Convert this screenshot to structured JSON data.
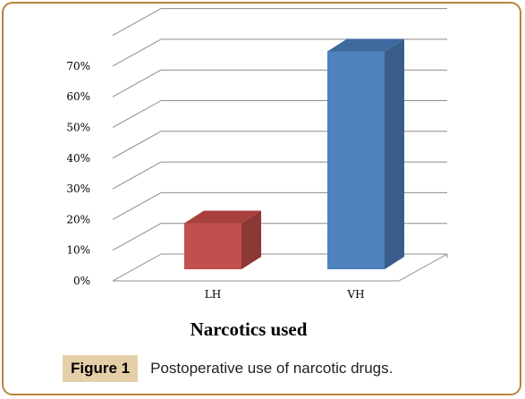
{
  "chart_data": {
    "type": "bar",
    "categories": [
      "LH",
      "VH"
    ],
    "values": [
      15,
      71
    ],
    "yticks": [
      "0%",
      "10%",
      "20%",
      "30%",
      "40%",
      "50%",
      "60%",
      "70%"
    ],
    "ylim": [
      0,
      70
    ],
    "xlabel": "Narcotics used",
    "ylabel": "",
    "grid": true,
    "style": "3d-column",
    "colors": {
      "LH": {
        "front": "#c0504d",
        "side": "#8c3836",
        "top": "#a8413e"
      },
      "VH": {
        "front": "#4f81bd",
        "side": "#385d8a",
        "top": "#3e6aa0"
      },
      "grid": "#8c8c8c"
    }
  },
  "caption": {
    "label": "Figure 1",
    "text": "Postoperative use of narcotic drugs.",
    "label_bg": "#e5cfa9",
    "border_color": "#b5863d"
  }
}
